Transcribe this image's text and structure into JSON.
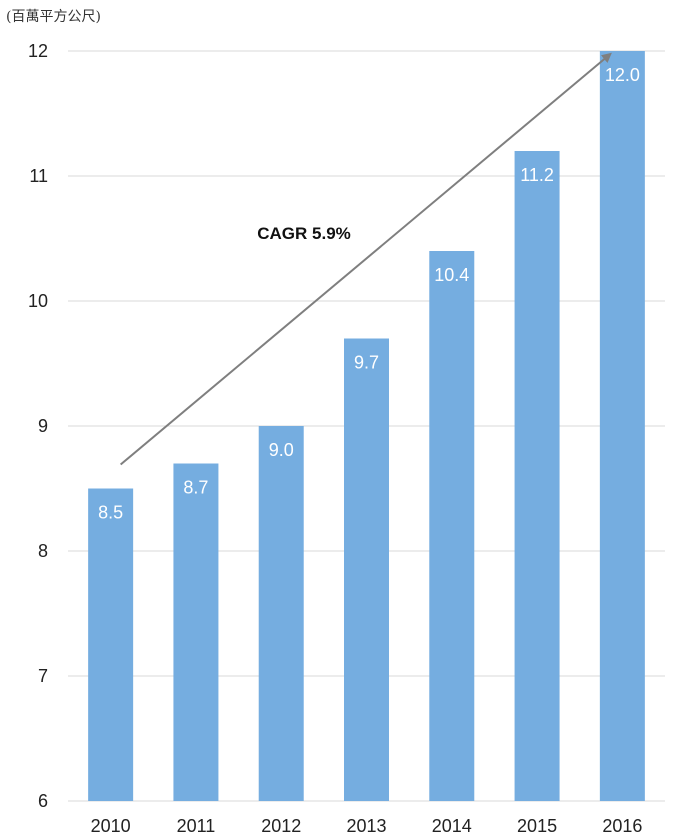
{
  "chart_data": {
    "type": "bar",
    "unit_label": "(百萬平方公尺)",
    "categories": [
      "2010",
      "2011",
      "2012",
      "2013",
      "2014",
      "2015",
      "2016"
    ],
    "values": [
      8.5,
      8.7,
      9.0,
      9.7,
      10.4,
      11.2,
      12.0
    ],
    "value_labels": [
      "8.5",
      "8.7",
      "9.0",
      "9.7",
      "10.4",
      "11.2",
      "12.0"
    ],
    "ylim": [
      6,
      12
    ],
    "yticks": [
      6,
      7,
      8,
      9,
      10,
      11,
      12
    ],
    "grid": true,
    "annotation": {
      "text": "CAGR 5.9%",
      "arrow_from": {
        "x": "2010",
        "y": 8.7
      },
      "arrow_to": {
        "x": "2016",
        "y": 12.0
      }
    },
    "colors": {
      "bar": "#75ade0",
      "grid": "#d9d9d9",
      "arrow": "#7f7f7f"
    }
  }
}
